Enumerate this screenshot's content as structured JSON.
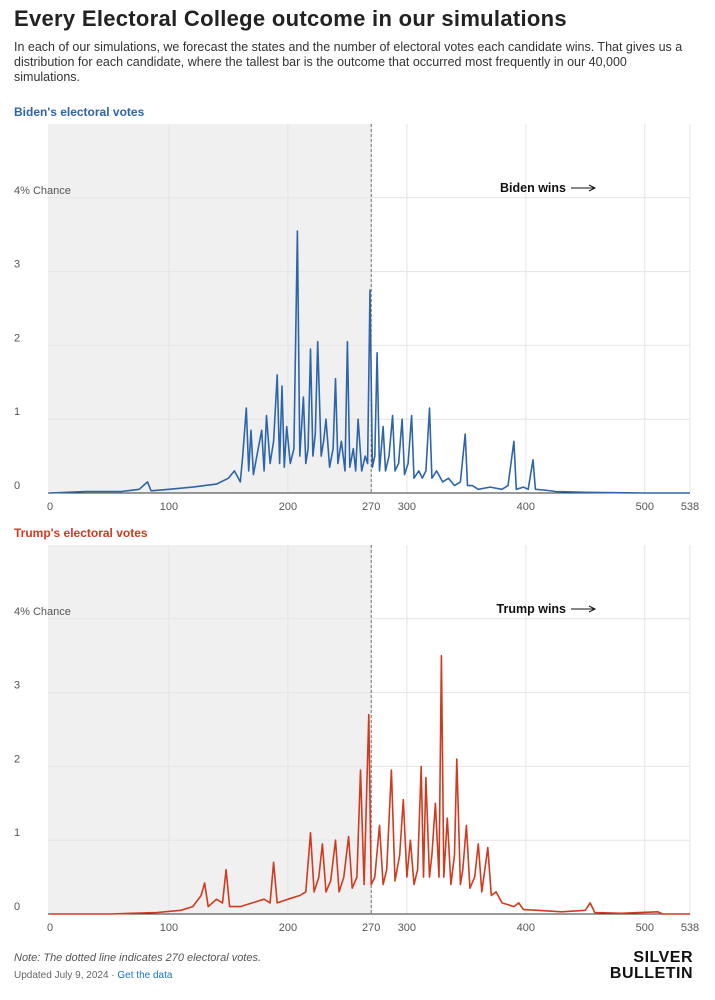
{
  "header": {
    "title": "Every Electoral College outcome in our simulations",
    "description": "In each of our simulations, we forecast the states and the number of electoral votes each candidate wins. That gives us a distribution for each candidate, where the tallest bar is the outcome that occurred most frequently in our 40,000 simulations."
  },
  "chart_data": [
    {
      "type": "line",
      "title": "Biden's electoral votes",
      "color": "#2e65a8",
      "annotation": "Biden wins",
      "xlim": [
        0,
        538
      ],
      "xticks": [
        0,
        100,
        200,
        270,
        300,
        400,
        500,
        538
      ],
      "threshold": 270,
      "ylim": [
        0,
        5
      ],
      "yticks": [
        0,
        1,
        2,
        3,
        {
          "value": 4,
          "label": "4% Chance"
        }
      ],
      "grid": true,
      "x": [
        0,
        30,
        60,
        75,
        82,
        85,
        100,
        120,
        140,
        150,
        155,
        160,
        162,
        165,
        167,
        169,
        171,
        175,
        178,
        180,
        182,
        185,
        188,
        191,
        193,
        195,
        197,
        199,
        202,
        205,
        208,
        210,
        213,
        215,
        217,
        219,
        221,
        223,
        225,
        228,
        230,
        232,
        235,
        238,
        240,
        242,
        245,
        248,
        250,
        252,
        255,
        257,
        259,
        262,
        265,
        267,
        269,
        271,
        273,
        275,
        277,
        280,
        282,
        285,
        288,
        290,
        293,
        296,
        298,
        301,
        304,
        306,
        310,
        313,
        316,
        319,
        321,
        325,
        330,
        335,
        340,
        345,
        349,
        351,
        355,
        360,
        370,
        380,
        385,
        390,
        392,
        398,
        402,
        406,
        408,
        415,
        425,
        450,
        500,
        538
      ],
      "values": [
        0,
        0.02,
        0.02,
        0.05,
        0.15,
        0.03,
        0.05,
        0.08,
        0.12,
        0.2,
        0.3,
        0.15,
        0.5,
        1.15,
        0.3,
        0.85,
        0.25,
        0.6,
        0.85,
        0.3,
        1.05,
        0.4,
        0.7,
        1.6,
        0.4,
        1.45,
        0.35,
        0.9,
        0.4,
        0.6,
        3.55,
        0.5,
        1.3,
        0.4,
        0.6,
        1.95,
        0.5,
        0.8,
        2.05,
        0.5,
        0.7,
        1.0,
        0.35,
        0.6,
        1.55,
        0.4,
        0.7,
        0.3,
        2.05,
        0.35,
        0.6,
        0.3,
        1.0,
        0.3,
        0.5,
        0.4,
        2.75,
        0.35,
        0.5,
        1.9,
        0.3,
        0.9,
        0.3,
        0.5,
        1.05,
        0.3,
        0.4,
        1.0,
        0.25,
        0.4,
        1.05,
        0.2,
        0.3,
        0.2,
        0.3,
        1.15,
        0.2,
        0.3,
        0.15,
        0.2,
        0.1,
        0.15,
        0.8,
        0.1,
        0.1,
        0.05,
        0.08,
        0.05,
        0.1,
        0.7,
        0.05,
        0.08,
        0.05,
        0.45,
        0.05,
        0.04,
        0.02,
        0.01,
        0,
        0
      ]
    },
    {
      "type": "line",
      "title": "Trump's electoral votes",
      "color": "#d03b20",
      "annotation": "Trump wins",
      "xlim": [
        0,
        538
      ],
      "xticks": [
        0,
        100,
        200,
        270,
        300,
        400,
        500,
        538
      ],
      "threshold": 270,
      "ylim": [
        0,
        5
      ],
      "yticks": [
        0,
        1,
        2,
        3,
        {
          "value": 4,
          "label": "4% Chance"
        }
      ],
      "grid": true,
      "x": [
        0,
        50,
        90,
        110,
        120,
        127,
        130,
        133,
        140,
        145,
        148,
        151,
        160,
        170,
        180,
        185,
        188,
        191,
        200,
        210,
        215,
        219,
        222,
        226,
        229,
        232,
        236,
        240,
        243,
        247,
        251,
        254,
        258,
        261,
        264,
        268,
        270,
        273,
        277,
        280,
        283,
        287,
        290,
        294,
        297,
        300,
        303,
        306,
        309,
        312,
        314,
        316,
        319,
        321,
        324,
        327,
        329,
        331,
        334,
        337,
        340,
        342,
        345,
        347,
        350,
        353,
        357,
        360,
        363,
        368,
        371,
        375,
        380,
        390,
        394,
        398,
        410,
        430,
        450,
        454,
        458,
        480,
        511,
        515,
        538
      ],
      "values": [
        0,
        0,
        0.02,
        0.05,
        0.1,
        0.25,
        0.42,
        0.1,
        0.2,
        0.15,
        0.6,
        0.1,
        0.1,
        0.15,
        0.2,
        0.15,
        0.7,
        0.15,
        0.2,
        0.25,
        0.3,
        1.1,
        0.3,
        0.5,
        0.95,
        0.3,
        0.45,
        1.0,
        0.3,
        0.5,
        1.05,
        0.35,
        0.5,
        1.95,
        0.4,
        2.7,
        0.4,
        0.5,
        1.2,
        0.4,
        0.6,
        1.95,
        0.45,
        0.8,
        1.55,
        0.5,
        1.0,
        0.4,
        0.6,
        2.0,
        0.5,
        1.85,
        0.5,
        0.8,
        1.5,
        0.5,
        3.5,
        0.5,
        1.3,
        0.4,
        0.8,
        2.1,
        0.4,
        0.6,
        1.2,
        0.35,
        0.5,
        0.95,
        0.3,
        0.9,
        0.25,
        0.3,
        0.15,
        0.1,
        0.15,
        0.06,
        0.05,
        0.03,
        0.05,
        0.15,
        0.02,
        0.01,
        0.03,
        0,
        0
      ]
    }
  ],
  "footer": {
    "note": "Note: The dotted line indicates 270 electoral votes.",
    "updated": "Updated July 9, 2024 · ",
    "link": "Get the data",
    "logo": "SILVER BULLETIN"
  }
}
